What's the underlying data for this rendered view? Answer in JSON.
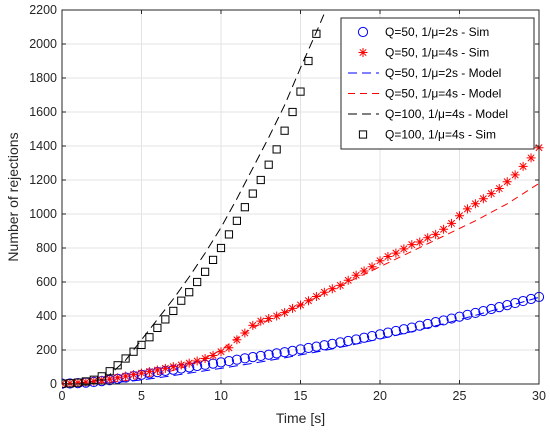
{
  "chart_data": {
    "type": "line",
    "xlabel": "Time [s]",
    "ylabel": "Number of rejections",
    "xlim": [
      0,
      30
    ],
    "ylim": [
      0,
      2200
    ],
    "xticks": [
      0,
      5,
      10,
      15,
      20,
      25,
      30
    ],
    "yticks": [
      0,
      200,
      400,
      600,
      800,
      1000,
      1200,
      1400,
      1600,
      1800,
      2000,
      2200
    ],
    "grid": true,
    "legend_position": "top-right",
    "series": [
      {
        "name": "Q=50, 1/μ=2s - Sim",
        "kind": "markers",
        "marker": "circle",
        "color": "#0000ff",
        "x": [
          0,
          0.5,
          1,
          1.5,
          2,
          2.5,
          3,
          3.5,
          4,
          4.5,
          5,
          5.5,
          6,
          6.5,
          7,
          7.5,
          8,
          8.5,
          9,
          9.5,
          10,
          10.5,
          11,
          11.5,
          12,
          12.5,
          13,
          13.5,
          14,
          14.5,
          15,
          15.5,
          16,
          16.5,
          17,
          17.5,
          18,
          18.5,
          19,
          19.5,
          20,
          20.5,
          21,
          21.5,
          22,
          22.5,
          23,
          23.5,
          24,
          24.5,
          25,
          25.5,
          26,
          26.5,
          27,
          27.5,
          28,
          28.5,
          29,
          29.5,
          30
        ],
        "y": [
          2,
          3,
          5,
          8,
          12,
          17,
          23,
          30,
          38,
          46,
          54,
          62,
          70,
          77,
          84,
          91,
          98,
          106,
          113,
          120,
          127,
          135,
          143,
          151,
          158,
          165,
          172,
          180,
          187,
          195,
          204,
          212,
          220,
          228,
          236,
          245,
          253,
          262,
          272,
          282,
          292,
          302,
          312,
          322,
          332,
          343,
          353,
          364,
          374,
          385,
          396,
          407,
          418,
          429,
          441,
          452,
          464,
          476,
          488,
          500,
          512
        ]
      },
      {
        "name": "Q=50, 1/μ=4s - Sim",
        "kind": "markers",
        "marker": "asterisk",
        "color": "#ff0000",
        "x": [
          0,
          0.5,
          1,
          1.5,
          2,
          2.5,
          3,
          3.5,
          4,
          4.5,
          5,
          5.5,
          6,
          6.5,
          7,
          7.5,
          8,
          8.5,
          9,
          9.5,
          10,
          10.5,
          11,
          11.5,
          12,
          12.5,
          13,
          13.5,
          14,
          14.5,
          15,
          15.5,
          16,
          16.5,
          17,
          17.5,
          18,
          18.5,
          19,
          19.5,
          20,
          20.5,
          21,
          21.5,
          22,
          22.5,
          23,
          23.5,
          24,
          24.5,
          25,
          25.5,
          26,
          26.5,
          27,
          27.5,
          28,
          28.5,
          29,
          29.5,
          30
        ],
        "y": [
          3,
          4,
          7,
          11,
          16,
          22,
          29,
          37,
          46,
          55,
          64,
          73,
          82,
          92,
          102,
          112,
          123,
          135,
          150,
          168,
          190,
          213,
          260,
          300,
          345,
          370,
          385,
          400,
          420,
          445,
          465,
          490,
          515,
          540,
          560,
          580,
          610,
          640,
          665,
          690,
          725,
          750,
          770,
          795,
          820,
          835,
          860,
          880,
          910,
          945,
          990,
          1030,
          1060,
          1090,
          1120,
          1150,
          1190,
          1230,
          1280,
          1330,
          1390
        ]
      },
      {
        "name": "Q=50, 1/μ=2s - Model",
        "kind": "line",
        "dash": "long",
        "color": "#0000ff",
        "x": [
          0,
          1,
          2,
          3,
          4,
          5,
          6,
          7,
          8,
          9,
          10,
          12,
          14,
          16,
          18,
          20,
          22,
          24,
          26,
          28,
          30
        ],
        "y": [
          0,
          1,
          3,
          7,
          14,
          24,
          36,
          50,
          64,
          78,
          92,
          122,
          154,
          188,
          225,
          265,
          308,
          354,
          404,
          456,
          510
        ]
      },
      {
        "name": "Q=50, 1/μ=4s - Model",
        "kind": "line",
        "dash": "medium",
        "color": "#ff0000",
        "x": [
          0,
          1,
          2,
          3,
          4,
          5,
          6,
          7,
          8,
          9,
          10,
          11,
          12,
          14,
          16,
          18,
          20,
          22,
          24,
          26,
          28,
          30
        ],
        "y": [
          0,
          1,
          4,
          10,
          20,
          35,
          55,
          80,
          110,
          150,
          200,
          270,
          330,
          420,
          510,
          600,
          690,
          780,
          870,
          960,
          1060,
          1180
        ]
      },
      {
        "name": "Q=100, 1/μ=4s - Model",
        "kind": "line",
        "dash": "long",
        "color": "#000000",
        "x": [
          0,
          1,
          2,
          3,
          4,
          5,
          6,
          7,
          8,
          9,
          10,
          11,
          12,
          13,
          14,
          15,
          16,
          16.5
        ],
        "y": [
          0,
          2,
          15,
          55,
          140,
          260,
          380,
          500,
          630,
          770,
          920,
          1090,
          1270,
          1450,
          1640,
          1860,
          2070,
          2180
        ]
      },
      {
        "name": "Q=100, 1/μ=4s - Sim",
        "kind": "markers",
        "marker": "square",
        "color": "#000000",
        "x": [
          0,
          0.5,
          1,
          1.5,
          2,
          2.5,
          3,
          3.5,
          4,
          4.5,
          5,
          5.5,
          6,
          6.5,
          7,
          7.5,
          8,
          8.5,
          9,
          9.5,
          10,
          10.5,
          11,
          11.5,
          12,
          12.5,
          13,
          13.5,
          14,
          14.5,
          15,
          15.5,
          16
        ],
        "y": [
          2,
          4,
          8,
          15,
          25,
          45,
          75,
          110,
          150,
          190,
          230,
          275,
          330,
          380,
          430,
          490,
          540,
          600,
          660,
          730,
          800,
          880,
          960,
          1040,
          1120,
          1200,
          1290,
          1380,
          1490,
          1600,
          1720,
          1900,
          2060
        ]
      }
    ]
  }
}
